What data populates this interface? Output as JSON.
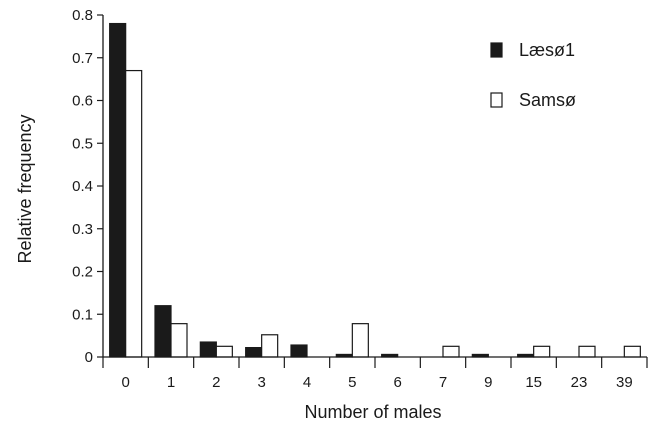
{
  "chart_data": {
    "type": "bar",
    "title": "",
    "xlabel": "Number of males",
    "ylabel": "Relative frequency",
    "categories": [
      "0",
      "1",
      "2",
      "3",
      "4",
      "5",
      "6",
      "7",
      "9",
      "15",
      "23",
      "39"
    ],
    "ylim": [
      0,
      0.8
    ],
    "yticks": [
      "0",
      "0.1",
      "0.2",
      "0.3",
      "0.4",
      "0.5",
      "0.6",
      "0.7",
      "0.8"
    ],
    "legend_position": "top-right",
    "grid": false,
    "series": [
      {
        "name": "Læsø1",
        "color": "#1a1a1a",
        "values": [
          0.78,
          0.12,
          0.035,
          0.022,
          0.028,
          0.006,
          0.006,
          0,
          0.006,
          0.006,
          0,
          0
        ]
      },
      {
        "name": "Samsø",
        "color": "#ffffff",
        "values": [
          0.67,
          0.078,
          0.025,
          0.052,
          0,
          0.078,
          0,
          0.025,
          0,
          0.025,
          0.025,
          0.025
        ]
      }
    ]
  }
}
